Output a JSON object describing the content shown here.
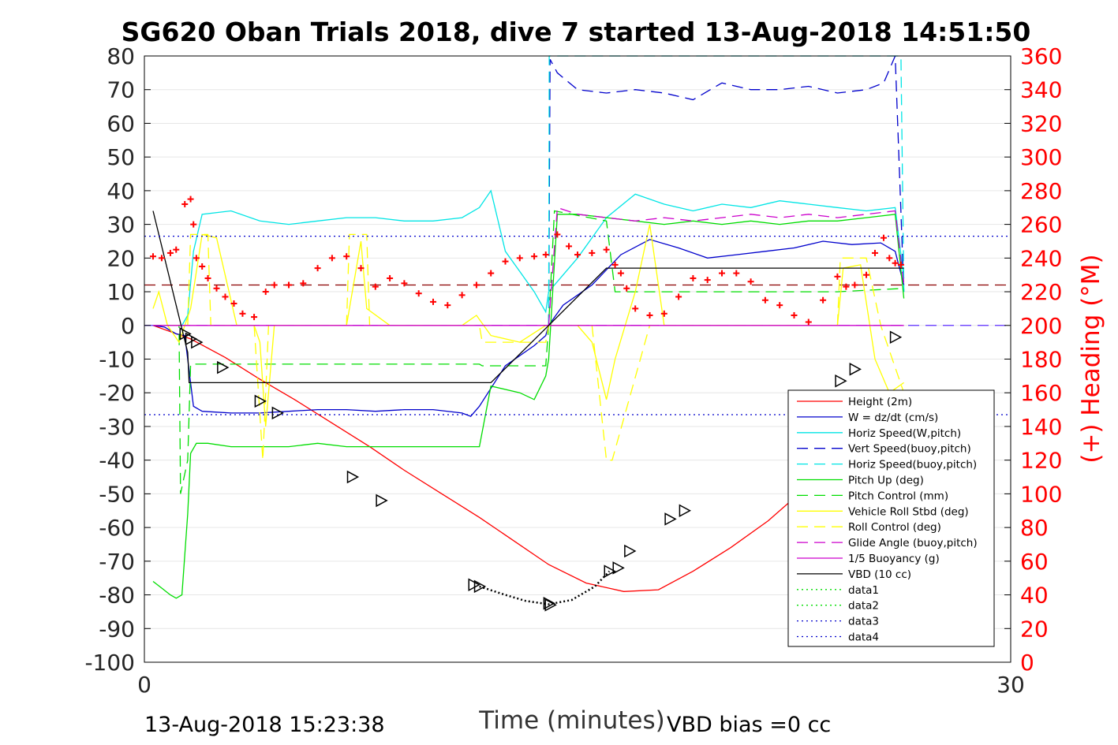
{
  "chart_data": {
    "type": "line",
    "title": "SG620 Oban Trials 2018, dive 7 started 13-Aug-2018 14:51:50",
    "xlabel": "Time (minutes)",
    "ylabel": "",
    "y2label": "(+) Heading (°M)",
    "xlim": [
      0,
      30
    ],
    "ylim": [
      -100,
      80
    ],
    "y2lim": [
      0,
      360
    ],
    "xticks": [
      "0",
      "30"
    ],
    "yticks": [
      "80",
      "70",
      "60",
      "50",
      "40",
      "30",
      "20",
      "10",
      "0",
      "-10",
      "-20",
      "-30",
      "-40",
      "-50",
      "-60",
      "-70",
      "-80",
      "-90",
      "-100"
    ],
    "y2ticks": [
      "360",
      "340",
      "320",
      "300",
      "280",
      "260",
      "240",
      "220",
      "200",
      "180",
      "160",
      "140",
      "120",
      "100",
      "80",
      "60",
      "40",
      "20",
      "0"
    ],
    "grid": true,
    "legend_position": "lower-right",
    "footer_left": "13-Aug-2018 15:23:38",
    "footer_right": "VBD bias =0 cc",
    "colors": {
      "red": "#ff0000",
      "blue": "#0000cc",
      "cyan": "#00e5e5",
      "green": "#00dd00",
      "yellow": "#ffff00",
      "magenta": "#cc00cc",
      "black": "#000000",
      "purple": "#5b2cff"
    },
    "series": [
      {
        "name": "Height (2m)",
        "color": "#ff0000",
        "dash": "solid",
        "x": [
          0.3,
          1.6,
          2.8,
          4.0,
          5.2,
          6.5,
          7.8,
          9.0,
          10.3,
          11.6,
          12.8,
          14.0,
          15.3,
          16.6,
          17.8,
          19.0,
          20.3,
          21.6,
          22.8,
          24.0,
          25.3,
          26.3
        ],
        "y": [
          0,
          -4,
          -9.5,
          -16,
          -22,
          -29,
          -36,
          -43,
          -50,
          -57,
          -64,
          -71,
          -76.5,
          -79,
          -78.5,
          -73,
          -66,
          -58,
          -49,
          -40,
          -31,
          -24
        ]
      },
      {
        "name": "W = dz/dt (cm/s)",
        "color": "#0000cc",
        "dash": "solid",
        "x": [
          0.3,
          0.7,
          1.1,
          1.4,
          1.5,
          1.7,
          2.0,
          3.0,
          4.0,
          5.0,
          6.0,
          7.0,
          8.0,
          9.0,
          10.0,
          11.0,
          11.3,
          11.6,
          12.5,
          13.5,
          13.9,
          14.0,
          14.5,
          15.5,
          16.5,
          17.5,
          18.5,
          19.5,
          20.5,
          21.5,
          22.5,
          23.5,
          24.5,
          25.5,
          26.0,
          26.3
        ],
        "y": [
          0,
          -0.5,
          -2.5,
          -3,
          -10,
          -24,
          -25.5,
          -26,
          -26,
          -25.5,
          -25,
          -25,
          -25.5,
          -25,
          -25,
          -26,
          -27,
          -24,
          -12,
          -6,
          -3,
          0,
          6,
          12,
          21,
          25.5,
          23,
          20,
          21,
          22,
          23,
          25,
          24,
          24.5,
          22,
          12
        ]
      },
      {
        "name": "Horiz Speed(W,pitch)",
        "color": "#00e5e5",
        "dash": "solid",
        "x": [
          0.3,
          1.3,
          1.5,
          1.7,
          2.0,
          3.0,
          4.0,
          5.0,
          6.0,
          7.0,
          8.0,
          9.0,
          10.0,
          11.0,
          11.6,
          12.0,
          12.5,
          13.0,
          13.5,
          13.9,
          14.0,
          14.5,
          15.0,
          16.0,
          17.0,
          18.0,
          19.0,
          20.0,
          21.0,
          22.0,
          23.0,
          24.0,
          25.0,
          26.0,
          26.3
        ],
        "y": [
          0,
          0,
          3,
          22,
          33,
          34,
          31,
          30,
          31,
          32,
          32,
          31,
          31,
          32,
          35,
          40,
          22,
          16,
          10,
          4,
          10,
          15,
          20,
          32,
          39,
          36,
          34,
          36,
          35,
          37,
          36,
          35,
          34,
          35,
          14
        ]
      },
      {
        "name": "Vert Speed(buoy,pitch)",
        "color": "#0000cc",
        "dash": "dashed",
        "x": [
          14.0,
          14.05,
          14.3,
          15.0,
          16.0,
          17.0,
          18.0,
          19.0,
          20.0,
          21.0,
          22.0,
          23.0,
          24.0,
          25.0,
          25.6,
          26.0,
          26.3
        ],
        "y": [
          0,
          79,
          75,
          70,
          69,
          70,
          69,
          67,
          72,
          70,
          70,
          71,
          69,
          70,
          72,
          80,
          10
        ]
      },
      {
        "name": "Horiz Speed(buoy,pitch)",
        "color": "#00e5e5",
        "dash": "dashed",
        "x": [
          14.0,
          14.02,
          14.05,
          26.1,
          26.2,
          26.3
        ],
        "y": [
          0,
          80,
          80,
          80,
          80,
          10
        ]
      },
      {
        "name": "Pitch Up (deg)",
        "color": "#00dd00",
        "dash": "solid",
        "x": [
          0.3,
          0.6,
          0.9,
          1.1,
          1.3,
          1.5,
          1.6,
          1.8,
          2.2,
          3.0,
          4.0,
          5.0,
          6.0,
          7.0,
          8.0,
          9.0,
          10.0,
          11.0,
          11.6,
          12.0,
          13.0,
          13.5,
          13.9,
          14.0,
          14.3,
          15.0,
          16.0,
          17.0,
          18.0,
          19.0,
          20.0,
          21.0,
          22.0,
          23.0,
          24.0,
          25.0,
          26.0,
          26.3
        ],
        "y": [
          -76,
          -78,
          -80,
          -81,
          -80,
          -56,
          -38,
          -35,
          -35,
          -36,
          -36,
          -36,
          -35,
          -36,
          -36,
          -36,
          -36,
          -36,
          -36,
          -18,
          -20,
          -22,
          -15,
          -10,
          33,
          33,
          32,
          31,
          30,
          31,
          30,
          31,
          30,
          31,
          31,
          32,
          33,
          8
        ]
      },
      {
        "name": "Pitch Control (mm)",
        "color": "#00dd00",
        "dash": "dashed",
        "x": [
          0.3,
          1.2,
          1.25,
          1.5,
          1.6,
          4.0,
          8.0,
          11.6,
          11.7,
          13.9,
          14.0,
          14.2,
          16.0,
          16.3,
          20.0,
          24.0,
          26.3
        ],
        "y": [
          0,
          0,
          -50,
          -40,
          -11.5,
          -11.5,
          -11.5,
          -11.5,
          -12,
          -12,
          0,
          34,
          31,
          10,
          10,
          10,
          11
        ]
      },
      {
        "name": "Vehicle Roll Stbd (deg)",
        "color": "#ffff00",
        "dash": "solid",
        "x": [
          0.3,
          0.5,
          0.8,
          1.2,
          1.6,
          2.0,
          2.5,
          3.2,
          3.8,
          4.0,
          4.2,
          4.5,
          5.0,
          6.0,
          7.0,
          7.5,
          7.7,
          8.5,
          9.0,
          10.0,
          11.0,
          11.5,
          12.0,
          13.0,
          13.9,
          14.0,
          14.5,
          15.0,
          15.5,
          16.0,
          16.3,
          17.0,
          17.5,
          18.0,
          18.5,
          20.0,
          22.0,
          24.0,
          24.2,
          24.8,
          25.3,
          25.8,
          26.3
        ],
        "y": [
          5,
          10,
          0,
          -5,
          5,
          27,
          26,
          0,
          0,
          -5,
          -30,
          0,
          0,
          0,
          0,
          25,
          5,
          0,
          0,
          0,
          0,
          3,
          -3,
          -5,
          0,
          0,
          0,
          0,
          -5,
          -22,
          -10,
          10,
          30,
          0,
          0,
          0,
          0,
          0,
          17,
          18,
          -10,
          -20,
          -17
        ]
      },
      {
        "name": "Roll Control (deg)",
        "color": "#ffff00",
        "dash": "dashed",
        "x": [
          0.3,
          1.5,
          1.6,
          2.2,
          2.3,
          3.8,
          4.1,
          4.3,
          7.0,
          7.1,
          7.7,
          7.8,
          11.6,
          11.7,
          13.9,
          14.0,
          15.5,
          16.0,
          16.2,
          17.5,
          17.8,
          24.0,
          24.1,
          25.0,
          25.5,
          26.3
        ],
        "y": [
          0,
          0,
          27,
          27,
          0,
          0,
          -40,
          0,
          0,
          27,
          27,
          0,
          0,
          -5,
          -5,
          0,
          0,
          -40,
          -40,
          0,
          0,
          0,
          20,
          20,
          0,
          -20
        ]
      },
      {
        "name": "Glide Angle (buoy,pitch)",
        "color": "#cc00cc",
        "dash": "dashed",
        "x": [
          14.0,
          14.3,
          15.0,
          16.0,
          17.0,
          18.0,
          19.0,
          20.0,
          21.0,
          22.0,
          23.0,
          24.0,
          25.0,
          26.0,
          26.3
        ],
        "y": [
          0,
          35,
          33,
          32,
          31,
          32,
          31,
          32,
          33,
          32,
          33,
          32,
          33,
          34,
          12
        ]
      },
      {
        "name": "1/5 Buoyancy (g)",
        "color": "#cc00cc",
        "dash": "solid",
        "x": [
          0.3,
          14.0,
          26.3
        ],
        "y": [
          0,
          0,
          0
        ]
      },
      {
        "name": "VBD (10 cc)",
        "color": "#000000",
        "dash": "solid",
        "x": [
          0.3,
          1.5,
          1.55,
          11.6,
          12.0,
          14.0,
          16.0,
          16.2,
          26.3
        ],
        "y": [
          34,
          -8,
          -17,
          -17,
          -17,
          0,
          17,
          17,
          17
        ]
      },
      {
        "name": "data1",
        "color": "#00dd00",
        "dash": "dotted",
        "x": [],
        "y": []
      },
      {
        "name": "data2",
        "color": "#00dd00",
        "dash": "dotted",
        "x": [],
        "y": []
      },
      {
        "name": "data3",
        "color": "#0000cc",
        "dash": "dotted",
        "x": [
          0,
          30
        ],
        "y": [
          -26.5,
          -26.5
        ]
      },
      {
        "name": "data4",
        "color": "#0000cc",
        "dash": "dotted",
        "x": [
          0,
          30
        ],
        "y": [
          26.5,
          26.5
        ]
      }
    ],
    "reference_lines": [
      {
        "color": "#8b0000",
        "dash": "dashed",
        "y": 12
      },
      {
        "color": "#5b2cff",
        "dash": "dashed",
        "y": 0
      }
    ],
    "heading_points": {
      "color": "#ff0000",
      "marker": "+",
      "x": [
        0.3,
        0.6,
        0.9,
        1.1,
        1.4,
        1.6,
        1.7,
        1.8,
        2.0,
        2.2,
        2.5,
        2.8,
        3.1,
        3.4,
        3.8,
        4.2,
        4.5,
        5.0,
        5.5,
        6.0,
        6.5,
        7.0,
        7.5,
        8.0,
        8.5,
        9.0,
        9.5,
        10.0,
        10.5,
        11.0,
        11.5,
        12.0,
        12.5,
        13.0,
        13.5,
        13.9,
        14.3,
        14.7,
        15.0,
        15.5,
        16.0,
        16.3,
        16.5,
        16.7,
        17.0,
        17.5,
        18.0,
        18.5,
        19.0,
        19.5,
        20.0,
        20.5,
        21.0,
        21.5,
        22.0,
        22.5,
        23.0,
        23.5,
        24.0,
        24.3,
        24.6,
        25.0,
        25.3,
        25.6,
        25.8,
        26.0,
        26.2
      ],
      "y": [
        241,
        240,
        243,
        245,
        272,
        275,
        260,
        240,
        235,
        228,
        222,
        217,
        213,
        207,
        205,
        220,
        224,
        224,
        225,
        234,
        240,
        241,
        234,
        223,
        228,
        225,
        219,
        214,
        212,
        218,
        224,
        231,
        238,
        240,
        241,
        242,
        254,
        247,
        242,
        243,
        245,
        236,
        231,
        222,
        210,
        206,
        207,
        217,
        228,
        227,
        231,
        231,
        226,
        215,
        212,
        206,
        202,
        215,
        229,
        223,
        224,
        230,
        243,
        252,
        240,
        237,
        236
      ]
    },
    "triangle_markers": {
      "color": "#000000",
      "x": [
        1.4,
        1.6,
        1.8,
        2.7,
        4.0,
        4.6,
        7.2,
        8.2,
        11.4,
        11.6,
        14.0,
        14.05,
        16.1,
        16.4,
        16.8,
        18.2,
        18.7,
        24.1,
        24.6,
        26.0
      ],
      "y": [
        -2.5,
        -4,
        -5,
        -12.5,
        -22.5,
        -26,
        -45,
        -52,
        -77,
        -77.5,
        -82.5,
        -83,
        -73,
        -72,
        -67,
        -57.5,
        -55,
        -16.5,
        -13,
        -3.5
      ]
    },
    "dotted_curve": {
      "color": "#000000",
      "x": [
        11.6,
        12.5,
        13.2,
        14.0,
        14.8,
        15.6,
        16.1
      ],
      "y": [
        -77.5,
        -80,
        -81.8,
        -82.8,
        -81.5,
        -77.5,
        -73
      ]
    }
  }
}
